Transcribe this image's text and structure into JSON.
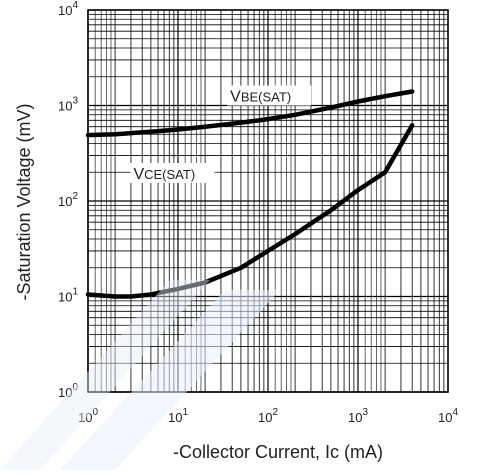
{
  "chart_data": {
    "type": "line",
    "x_scale": "log",
    "y_scale": "log",
    "xlim": [
      1,
      10000
    ],
    "ylim": [
      1,
      10000
    ],
    "xlabel": "-Collector Current, Ic (mA)",
    "ylabel": "-Saturation Voltage (mV)",
    "x_ticks": [
      {
        "base": "10",
        "exp": "0"
      },
      {
        "base": "10",
        "exp": "1"
      },
      {
        "base": "10",
        "exp": "2"
      },
      {
        "base": "10",
        "exp": "3"
      },
      {
        "base": "10",
        "exp": "4"
      }
    ],
    "y_ticks": [
      {
        "base": "10",
        "exp": "0"
      },
      {
        "base": "10",
        "exp": "1"
      },
      {
        "base": "10",
        "exp": "2"
      },
      {
        "base": "10",
        "exp": "3"
      },
      {
        "base": "10",
        "exp": "4"
      }
    ],
    "grid": true,
    "series": [
      {
        "name": "VBE(SAT)",
        "label_main": "V",
        "label_sub": "BE(SAT)",
        "points": [
          [
            1,
            490
          ],
          [
            2,
            500
          ],
          [
            5,
            530
          ],
          [
            10,
            560
          ],
          [
            20,
            600
          ],
          [
            50,
            660
          ],
          [
            100,
            720
          ],
          [
            200,
            800
          ],
          [
            500,
            950
          ],
          [
            1000,
            1100
          ],
          [
            2000,
            1250
          ],
          [
            4000,
            1400
          ]
        ]
      },
      {
        "name": "VCE(SAT)",
        "label_main": "V",
        "label_sub": "CE(SAT)",
        "points": [
          [
            1,
            10.5
          ],
          [
            2,
            10.0
          ],
          [
            3,
            10.0
          ],
          [
            5,
            10.5
          ],
          [
            10,
            12
          ],
          [
            20,
            14
          ],
          [
            50,
            20
          ],
          [
            100,
            30
          ],
          [
            200,
            45
          ],
          [
            500,
            80
          ],
          [
            1000,
            130
          ],
          [
            2000,
            200
          ],
          [
            4000,
            620
          ]
        ]
      }
    ]
  }
}
